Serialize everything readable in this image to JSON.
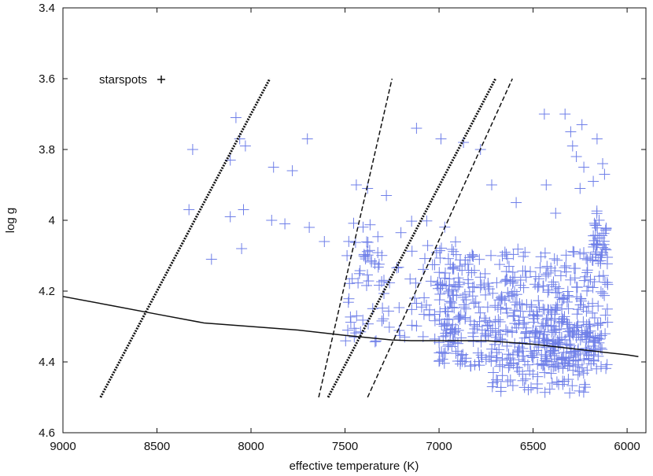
{
  "chart_data": {
    "type": "scatter",
    "title": "",
    "xlabel": "effective temperature (K)",
    "ylabel": "log g",
    "xlim": [
      9000,
      5900
    ],
    "ylim": [
      3.4,
      4.6
    ],
    "y_inverted": true,
    "x_ticks": [
      9000,
      8500,
      8000,
      7500,
      7000,
      6500,
      6000
    ],
    "y_ticks": [
      3.4,
      3.6,
      3.8,
      4.0,
      4.2,
      4.4,
      4.6
    ],
    "y_tick_labels": [
      "3.4",
      "3.6",
      "3.8",
      "4",
      "4.2",
      "4.4",
      "4.6"
    ],
    "grid": false,
    "legend": {
      "label": "starspots",
      "placement": "top-left"
    },
    "colors": {
      "markers": "#6f7fe8",
      "lines": "#111111"
    },
    "main_sequence_curve": {
      "style": "solid",
      "x": [
        9000,
        8750,
        8500,
        8250,
        8000,
        7750,
        7500,
        7250,
        7150,
        7000,
        6750,
        6500,
        6250,
        6000,
        5940
      ],
      "y": [
        4.215,
        4.24,
        4.265,
        4.29,
        4.3,
        4.31,
        4.325,
        4.338,
        4.34,
        4.34,
        4.34,
        4.35,
        4.365,
        4.38,
        4.385
      ]
    },
    "instability_strip_lines": [
      {
        "style": "dotted",
        "x": [
          8800,
          7900
        ],
        "y": [
          4.5,
          3.6
        ]
      },
      {
        "style": "dashed",
        "x": [
          7640,
          7250
        ],
        "y": [
          4.5,
          3.6
        ]
      },
      {
        "style": "dotted",
        "x": [
          7590,
          6700
        ],
        "y": [
          4.5,
          3.6
        ]
      },
      {
        "style": "dashed",
        "x": [
          7380,
          6610
        ],
        "y": [
          4.5,
          3.6
        ]
      }
    ],
    "series": [
      {
        "name": "starspots",
        "marker": "+",
        "points": [
          [
            8310,
            3.8
          ],
          [
            8080,
            3.71
          ],
          [
            8060,
            3.77
          ],
          [
            8030,
            3.79
          ],
          [
            8110,
            3.83
          ],
          [
            7880,
            3.85
          ],
          [
            7780,
            3.86
          ],
          [
            7700,
            3.77
          ],
          [
            8330,
            3.97
          ],
          [
            8110,
            3.99
          ],
          [
            8040,
            3.97
          ],
          [
            7890,
            4.0
          ],
          [
            7820,
            4.01
          ],
          [
            7690,
            4.02
          ],
          [
            7610,
            4.06
          ],
          [
            8210,
            4.11
          ],
          [
            8050,
            4.08
          ],
          [
            7440,
            3.9
          ],
          [
            7380,
            3.91
          ],
          [
            7280,
            3.93
          ],
          [
            7120,
            3.74
          ],
          [
            6990,
            3.77
          ],
          [
            6870,
            3.78
          ],
          [
            6780,
            3.8
          ],
          [
            6440,
            3.7
          ],
          [
            6330,
            3.7
          ],
          [
            6300,
            3.75
          ],
          [
            6240,
            3.73
          ],
          [
            6160,
            3.77
          ],
          [
            6290,
            3.79
          ],
          [
            6270,
            3.82
          ],
          [
            6230,
            3.85
          ],
          [
            6130,
            3.84
          ],
          [
            6120,
            3.87
          ],
          [
            6180,
            3.89
          ],
          [
            6250,
            3.91
          ],
          [
            6430,
            3.9
          ],
          [
            6720,
            3.9
          ],
          [
            6590,
            3.95
          ],
          [
            6380,
            3.98
          ]
        ]
      }
    ]
  }
}
